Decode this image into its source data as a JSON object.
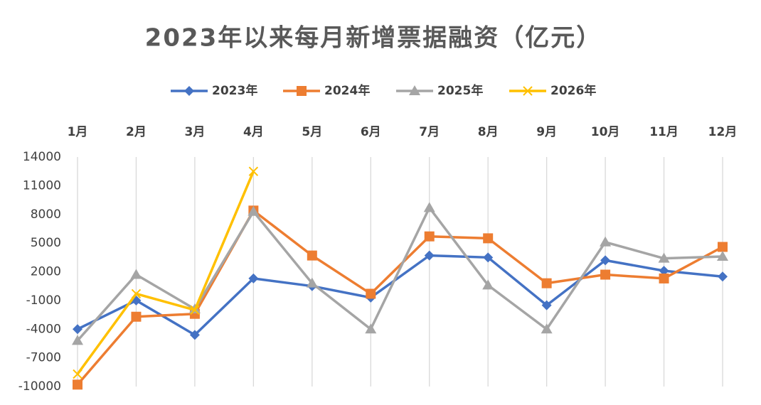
{
  "chart_data": {
    "type": "line",
    "title": "2023年以来每月新增票据融资（亿元）",
    "categories": [
      "1月",
      "2月",
      "3月",
      "4月",
      "5月",
      "6月",
      "7月",
      "8月",
      "9月",
      "10月",
      "11月",
      "12月"
    ],
    "series": [
      {
        "name": "2023年",
        "color": "#4472c4",
        "marker": "diamond",
        "values": [
          -4000,
          -1000,
          -4600,
          1300,
          500,
          -700,
          3700,
          3500,
          -1500,
          3200,
          2100,
          1500
        ]
      },
      {
        "name": "2024年",
        "color": "#ed7d31",
        "marker": "square",
        "values": [
          -9800,
          -2700,
          -2400,
          8400,
          3700,
          -300,
          5700,
          5500,
          800,
          1700,
          1300,
          4600
        ]
      },
      {
        "name": "2025年",
        "color": "#a5a5a5",
        "marker": "triangle",
        "values": [
          -5200,
          1700,
          -1900,
          8300,
          800,
          -4000,
          8700,
          600,
          -4000,
          5100,
          3400,
          3600
        ]
      },
      {
        "name": "2026年",
        "color": "#ffc000",
        "marker": "x",
        "values": [
          -8700,
          -300,
          -2000,
          12500,
          null,
          null,
          null,
          null,
          null,
          null,
          null,
          null
        ]
      }
    ],
    "ylim": [
      -10000,
      14000
    ],
    "yticks": [
      14000,
      11000,
      8000,
      5000,
      2000,
      -1000,
      -4000,
      -7000,
      -10000
    ],
    "grid": "vertical",
    "legend": "top"
  }
}
